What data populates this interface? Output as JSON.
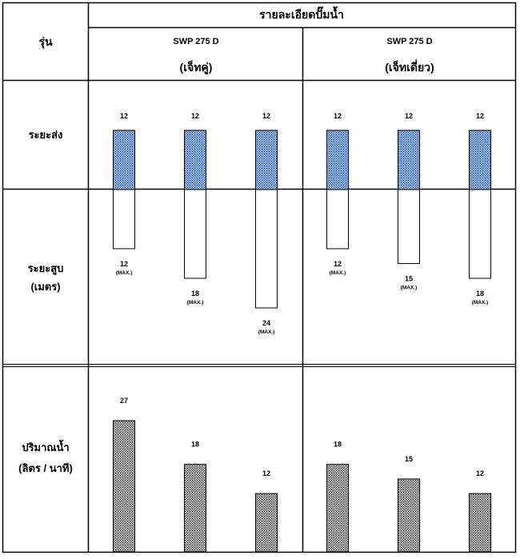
{
  "header": {
    "col_model_label": "รุ่น",
    "details_title": "รายละเอียดปั๊มน้ำ",
    "models": [
      {
        "name": "SWP 275 D",
        "subtitle": "(เจ็ทคู่)"
      },
      {
        "name": "SWP 275 D",
        "subtitle": "(เจ็ทเดี่ยว)"
      }
    ]
  },
  "row_labels": {
    "delivery": "ระยะส่ง",
    "suction_line1": "ระยะสูบ",
    "suction_line2": "(เมตร)",
    "flow_line1": "ปริมาณน้ำ",
    "flow_line2": "(ลิตร / นาที)"
  },
  "max_label": "(MAX.)",
  "colors": {
    "border": "#000000",
    "delivery_fill": "#8fb4e3",
    "flow_fill": "#9a9a9a"
  },
  "chart_data": [
    {
      "type": "bar",
      "name": "ระยะส่ง",
      "categories": [
        "1",
        "2",
        "3",
        "4",
        "5",
        "6"
      ],
      "values": [
        12,
        12,
        12,
        12,
        12,
        12
      ]
    },
    {
      "type": "bar",
      "name": "ระยะสูบ",
      "categories": [
        "1",
        "2",
        "3",
        "4",
        "5",
        "6"
      ],
      "values": [
        12,
        18,
        24,
        12,
        15,
        18
      ],
      "value_note": "(MAX.)"
    },
    {
      "type": "bar",
      "name": "ปริมาณน้ำ",
      "categories": [
        "1",
        "2",
        "3",
        "4",
        "5",
        "6"
      ],
      "values": [
        27,
        18,
        12,
        18,
        15,
        12
      ]
    }
  ]
}
